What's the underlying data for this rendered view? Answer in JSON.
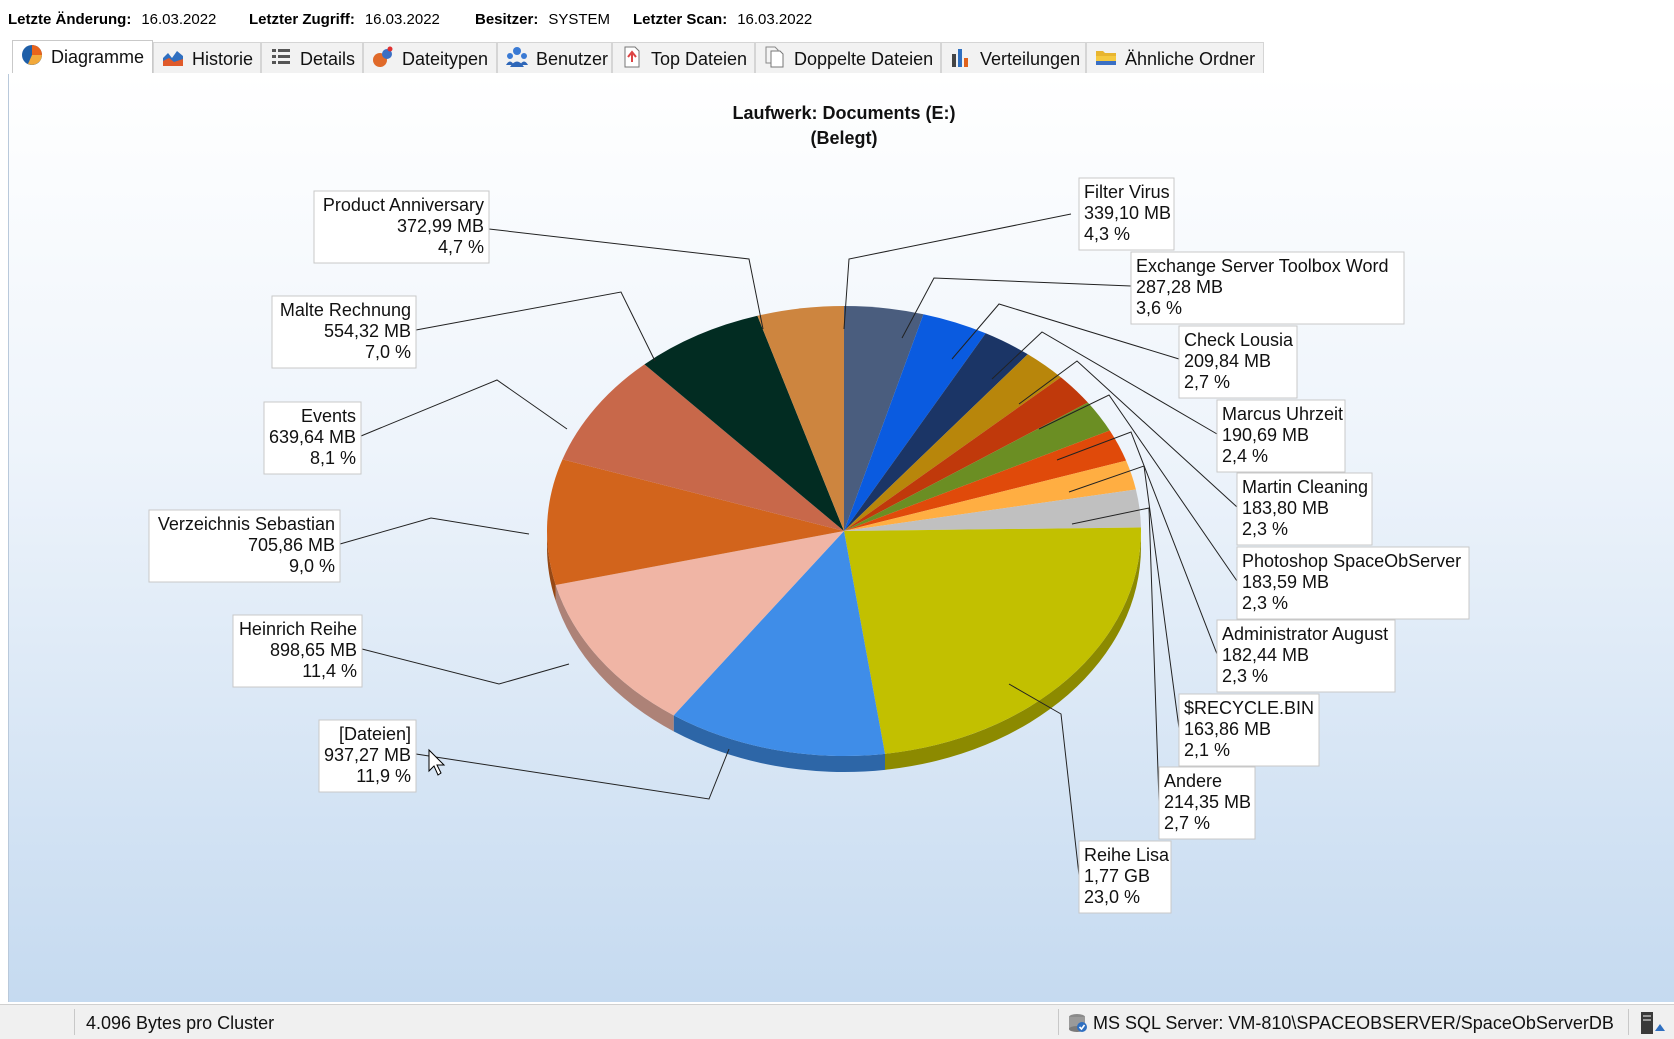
{
  "info": [
    {
      "key": "Letzte Änderung:",
      "value": "16.03.2022"
    },
    {
      "key": "Letzter Zugriff:",
      "value": "16.03.2022"
    },
    {
      "key": "Besitzer:",
      "value": "SYSTEM"
    },
    {
      "key": "Letzter Scan:",
      "value": "16.03.2022"
    }
  ],
  "tabs": [
    {
      "label": "Diagramme",
      "icon": "pie-chart-icon",
      "active": true
    },
    {
      "label": "Historie",
      "icon": "area-chart-icon"
    },
    {
      "label": "Details",
      "icon": "list-details-icon"
    },
    {
      "label": "Dateitypen",
      "icon": "file-types-icon"
    },
    {
      "label": "Benutzer",
      "icon": "users-icon"
    },
    {
      "label": "Top Dateien",
      "icon": "top-files-icon"
    },
    {
      "label": "Doppelte Dateien",
      "icon": "duplicate-files-icon"
    },
    {
      "label": "Verteilungen",
      "icon": "bar-chart-icon"
    },
    {
      "label": "Ähnliche Ordner",
      "icon": "folder-icon"
    }
  ],
  "chart_data": {
    "type": "pie",
    "title": "Laufwerk: Documents (E:)",
    "subtitle": "(Belegt)",
    "slices": [
      {
        "label": "Filter Virus",
        "size": "339,10 MB",
        "pct_text": "4,3 %",
        "value": 4.3,
        "color": "#4a5d7e"
      },
      {
        "label": "Exchange Server Toolbox Word",
        "size": "287,28 MB",
        "pct_text": "3,6 %",
        "value": 3.6,
        "color": "#0a5be0"
      },
      {
        "label": "Check Lousia",
        "size": "209,84 MB",
        "pct_text": "2,7 %",
        "value": 2.7,
        "color": "#1b3566"
      },
      {
        "label": "Marcus Uhrzeit",
        "size": "190,69 MB",
        "pct_text": "2,4 %",
        "value": 2.4,
        "color": "#b8860b"
      },
      {
        "label": "Martin Cleaning",
        "size": "183,80 MB",
        "pct_text": "2,3 %",
        "value": 2.3,
        "color": "#c0390b"
      },
      {
        "label": "Photoshop SpaceObServer",
        "size": "183,59 MB",
        "pct_text": "2,3 %",
        "value": 2.3,
        "color": "#6b8e23"
      },
      {
        "label": "Administrator August",
        "size": "182,44 MB",
        "pct_text": "2,3 %",
        "value": 2.3,
        "color": "#e04a0a"
      },
      {
        "label": "$RECYCLE.BIN",
        "size": "163,86 MB",
        "pct_text": "2,1 %",
        "value": 2.1,
        "color": "#ffae42"
      },
      {
        "label": "Andere",
        "size": "214,35 MB",
        "pct_text": "2,7 %",
        "value": 2.7,
        "color": "#c0c0c0"
      },
      {
        "label": "Reihe Lisa",
        "size": "1,77 GB",
        "pct_text": "23,0 %",
        "value": 23.0,
        "color": "#c2c000"
      },
      {
        "label": "[Dateien]",
        "size": "937,27 MB",
        "pct_text": "11,9 %",
        "value": 11.9,
        "color": "#3f8de8"
      },
      {
        "label": "Heinrich Reihe",
        "size": "898,65 MB",
        "pct_text": "11,4 %",
        "value": 11.4,
        "color": "#f0b5a5"
      },
      {
        "label": "Verzeichnis Sebastian",
        "size": "705,86 MB",
        "pct_text": "9,0 %",
        "value": 9.0,
        "color": "#d2641c"
      },
      {
        "label": "Events",
        "size": "639,64 MB",
        "pct_text": "8,1 %",
        "value": 8.1,
        "color": "#c8684a"
      },
      {
        "label": "Malte Rechnung",
        "size": "554,32 MB",
        "pct_text": "7,0 %",
        "value": 7.0,
        "color": "#022c22"
      },
      {
        "label": "Product Anniversary",
        "size": "372,99 MB",
        "pct_text": "4,7 %",
        "value": 4.7,
        "color": "#cd853f"
      }
    ]
  },
  "status": {
    "cluster": "4.096 Bytes pro Cluster",
    "server": "MS SQL Server: VM-810\\SPACEOBSERVER/SpaceObServerDB"
  }
}
